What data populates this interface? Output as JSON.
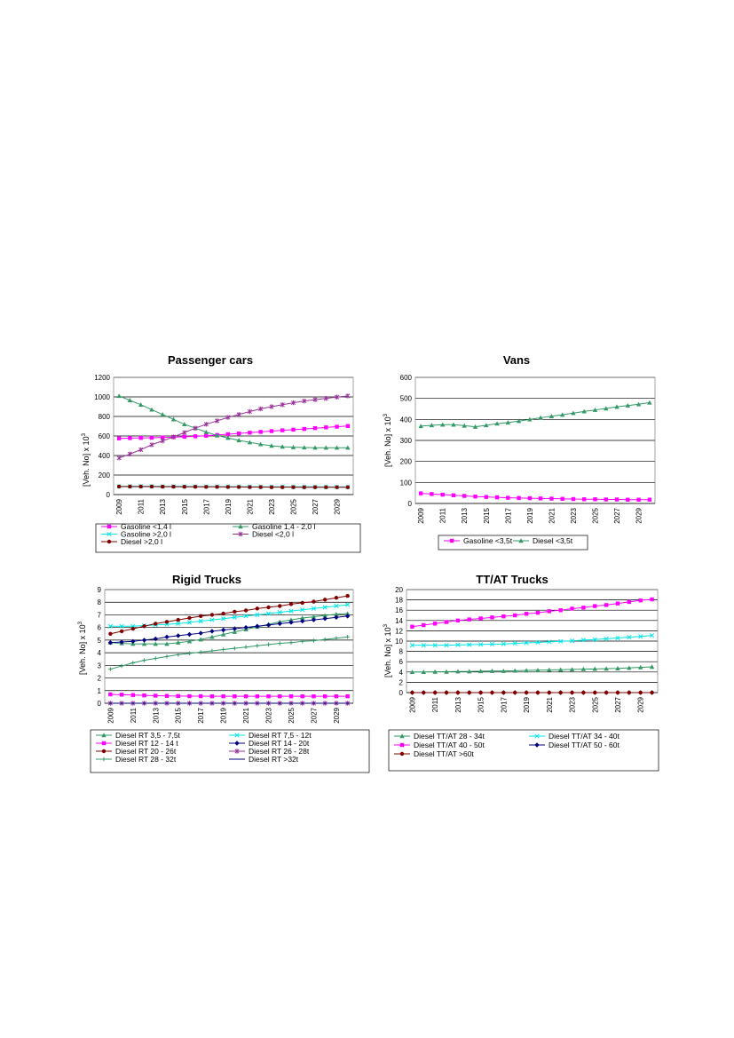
{
  "chart_data": [
    {
      "type": "line",
      "title": "Passenger cars",
      "ylabel": "[Veh. No] x 10",
      "ylabel_exp": "3",
      "ylim": [
        0,
        1200
      ],
      "yticks": [
        "0",
        "200",
        "400",
        "600",
        "800",
        "1000",
        "1200"
      ],
      "ytick_values": [
        0,
        200,
        400,
        600,
        800,
        1000,
        1200
      ],
      "x": [
        2009,
        2010,
        2011,
        2012,
        2013,
        2014,
        2015,
        2016,
        2017,
        2018,
        2019,
        2020,
        2021,
        2022,
        2023,
        2024,
        2025,
        2026,
        2027,
        2028,
        2029,
        2030
      ],
      "xticks": [
        "2009",
        "2011",
        "2013",
        "2015",
        "2017",
        "2019",
        "2021",
        "2023",
        "2025",
        "2027",
        "2029"
      ],
      "legend_position": "bottom",
      "series": [
        {
          "name": "Gasoline <1,4 l",
          "color": "#ff00ff",
          "marker": "square",
          "values": [
            575,
            578,
            580,
            582,
            585,
            588,
            592,
            597,
            602,
            610,
            618,
            626,
            634,
            642,
            650,
            658,
            665,
            672,
            680,
            688,
            695,
            702
          ]
        },
        {
          "name": "Gasoline 1,4 - 2,0 l",
          "color": "#339966",
          "marker": "triangle",
          "values": [
            1010,
            965,
            920,
            870,
            820,
            770,
            720,
            680,
            640,
            605,
            580,
            555,
            535,
            515,
            500,
            490,
            485,
            482,
            480,
            480,
            480,
            480
          ]
        },
        {
          "name": "Gasoline >2,0 l",
          "color": "#00e5e5",
          "marker": "x",
          "values": [
            85,
            85,
            85,
            85,
            84,
            84,
            84,
            83,
            83,
            82,
            82,
            81,
            81,
            80,
            80,
            80,
            79,
            79,
            79,
            78,
            78,
            78
          ]
        },
        {
          "name": "Diesel <2,0 l",
          "color": "#993399",
          "marker": "star",
          "values": [
            375,
            415,
            460,
            510,
            550,
            590,
            635,
            680,
            720,
            755,
            790,
            820,
            850,
            878,
            900,
            920,
            940,
            958,
            972,
            985,
            998,
            1010
          ]
        },
        {
          "name": "Diesel >2,0 l",
          "color": "#800000",
          "marker": "circle",
          "values": [
            82,
            82,
            82,
            82,
            81,
            81,
            80,
            80,
            79,
            79,
            78,
            78,
            77,
            77,
            76,
            76,
            76,
            75,
            75,
            75,
            75,
            75
          ]
        }
      ]
    },
    {
      "type": "line",
      "title": "Vans",
      "ylabel": "[Veh. No] x 10",
      "ylabel_exp": "3",
      "ylim": [
        0,
        600
      ],
      "yticks": [
        "0",
        "100",
        "200",
        "300",
        "400",
        "500",
        "600"
      ],
      "ytick_values": [
        0,
        100,
        200,
        300,
        400,
        500,
        600
      ],
      "x": [
        2009,
        2010,
        2011,
        2012,
        2013,
        2014,
        2015,
        2016,
        2017,
        2018,
        2019,
        2020,
        2021,
        2022,
        2023,
        2024,
        2025,
        2026,
        2027,
        2028,
        2029,
        2030
      ],
      "xticks": [
        "2009",
        "2011",
        "2013",
        "2015",
        "2017",
        "2019",
        "2021",
        "2023",
        "2025",
        "2027",
        "2029"
      ],
      "legend_position": "bottom",
      "series": [
        {
          "name": "Gasoline <3,5t",
          "color": "#ff00ff",
          "marker": "square",
          "values": [
            48,
            45,
            42,
            39,
            36,
            33,
            31,
            29,
            27,
            26,
            25,
            24,
            23,
            22,
            21,
            20,
            20,
            19,
            19,
            18,
            18,
            18
          ]
        },
        {
          "name": "Diesel <3,5t",
          "color": "#339966",
          "marker": "triangle",
          "values": [
            368,
            372,
            375,
            375,
            370,
            365,
            372,
            380,
            385,
            392,
            400,
            408,
            415,
            422,
            430,
            438,
            445,
            452,
            460,
            466,
            472,
            480
          ]
        }
      ]
    },
    {
      "type": "line",
      "title": "Rigid Trucks",
      "ylabel": "[Veh. No] x 10",
      "ylabel_exp": "3",
      "ylim": [
        0,
        9
      ],
      "yticks": [
        "0",
        "1",
        "2",
        "3",
        "4",
        "5",
        "6",
        "7",
        "8",
        "9"
      ],
      "ytick_values": [
        0,
        1,
        2,
        3,
        4,
        5,
        6,
        7,
        8,
        9
      ],
      "x": [
        2009,
        2010,
        2011,
        2012,
        2013,
        2014,
        2015,
        2016,
        2017,
        2018,
        2019,
        2020,
        2021,
        2022,
        2023,
        2024,
        2025,
        2026,
        2027,
        2028,
        2029,
        2030
      ],
      "xticks": [
        "2009",
        "2011",
        "2013",
        "2015",
        "2017",
        "2019",
        "2021",
        "2023",
        "2025",
        "2027",
        "2029"
      ],
      "legend_position": "bottom",
      "series": [
        {
          "name": "Diesel RT 3,5 - 7,5t",
          "color": "#339966",
          "marker": "triangle",
          "values": [
            4.8,
            4.75,
            4.7,
            4.7,
            4.7,
            4.7,
            4.8,
            4.9,
            5.05,
            5.25,
            5.45,
            5.65,
            5.85,
            6.05,
            6.25,
            6.45,
            6.6,
            6.75,
            6.85,
            6.95,
            7.05,
            7.1
          ]
        },
        {
          "name": "Diesel RT 7,5 - 12t",
          "color": "#00e5e5",
          "marker": "x",
          "values": [
            6.1,
            6.1,
            6.1,
            6.15,
            6.2,
            6.25,
            6.3,
            6.4,
            6.5,
            6.6,
            6.7,
            6.8,
            6.9,
            7.0,
            7.1,
            7.2,
            7.3,
            7.4,
            7.5,
            7.6,
            7.7,
            7.8
          ]
        },
        {
          "name": "Diesel RT 12 - 14 t",
          "color": "#ff00ff",
          "marker": "square",
          "values": [
            0.7,
            0.68,
            0.65,
            0.62,
            0.6,
            0.58,
            0.57,
            0.56,
            0.56,
            0.55,
            0.55,
            0.55,
            0.55,
            0.55,
            0.55,
            0.55,
            0.55,
            0.55,
            0.55,
            0.55,
            0.55,
            0.55
          ]
        },
        {
          "name": "Diesel RT 14 - 20t",
          "color": "#000080",
          "marker": "diamond",
          "values": [
            4.8,
            4.85,
            4.9,
            5.0,
            5.1,
            5.25,
            5.35,
            5.45,
            5.55,
            5.7,
            5.8,
            5.9,
            6.0,
            6.1,
            6.2,
            6.3,
            6.4,
            6.5,
            6.6,
            6.7,
            6.8,
            6.9
          ]
        },
        {
          "name": "Diesel RT 20 - 26t",
          "color": "#800000",
          "marker": "circle",
          "values": [
            5.5,
            5.7,
            5.9,
            6.1,
            6.3,
            6.45,
            6.6,
            6.75,
            6.9,
            7.0,
            7.1,
            7.25,
            7.35,
            7.5,
            7.6,
            7.7,
            7.85,
            7.95,
            8.05,
            8.2,
            8.35,
            8.5
          ]
        },
        {
          "name": "Diesel RT 26 - 28t",
          "color": "#993399",
          "marker": "star",
          "values": [
            0,
            0,
            0,
            0,
            0,
            0,
            0,
            0,
            0,
            0,
            0,
            0,
            0,
            0,
            0,
            0,
            0,
            0,
            0,
            0,
            0,
            0
          ]
        },
        {
          "name": "Diesel RT 28 - 32t",
          "color": "#339966",
          "marker": "plus",
          "values": [
            2.7,
            2.95,
            3.2,
            3.4,
            3.55,
            3.7,
            3.85,
            3.95,
            4.05,
            4.15,
            4.25,
            4.35,
            4.45,
            4.55,
            4.65,
            4.75,
            4.8,
            4.9,
            4.95,
            5.05,
            5.15,
            5.25
          ]
        },
        {
          "name": "Diesel RT >32t",
          "color": "#000080",
          "marker": "dash",
          "values": [
            0,
            0,
            0,
            0,
            0,
            0,
            0,
            0,
            0,
            0,
            0,
            0,
            0,
            0,
            0,
            0,
            0,
            0,
            0,
            0,
            0,
            0
          ]
        }
      ]
    },
    {
      "type": "line",
      "title": "TT/AT Trucks",
      "ylabel": "[Veh. No] x 10",
      "ylabel_exp": "3",
      "ylim": [
        0,
        20
      ],
      "yticks": [
        "0",
        "2",
        "4",
        "6",
        "8",
        "10",
        "12",
        "14",
        "16",
        "18",
        "20"
      ],
      "ytick_values": [
        0,
        2,
        4,
        6,
        8,
        10,
        12,
        14,
        16,
        18,
        20
      ],
      "x": [
        2009,
        2010,
        2011,
        2012,
        2013,
        2014,
        2015,
        2016,
        2017,
        2018,
        2019,
        2020,
        2021,
        2022,
        2023,
        2024,
        2025,
        2026,
        2027,
        2028,
        2029,
        2030
      ],
      "xticks": [
        "2009",
        "2011",
        "2013",
        "2015",
        "2017",
        "2019",
        "2021",
        "2023",
        "2025",
        "2027",
        "2029"
      ],
      "legend_position": "bottom",
      "series": [
        {
          "name": "Diesel TT/AT 28 - 34t",
          "color": "#339966",
          "marker": "triangle",
          "values": [
            4.0,
            4.0,
            4.05,
            4.05,
            4.1,
            4.1,
            4.15,
            4.2,
            4.2,
            4.25,
            4.3,
            4.35,
            4.4,
            4.45,
            4.5,
            4.55,
            4.6,
            4.65,
            4.7,
            4.8,
            4.9,
            5.0
          ]
        },
        {
          "name": "Diesel TT/AT 34 - 40t",
          "color": "#00e5e5",
          "marker": "x",
          "values": [
            9.2,
            9.2,
            9.2,
            9.2,
            9.25,
            9.3,
            9.35,
            9.4,
            9.45,
            9.55,
            9.65,
            9.75,
            9.85,
            9.95,
            10.05,
            10.2,
            10.3,
            10.45,
            10.6,
            10.75,
            10.9,
            11.1
          ]
        },
        {
          "name": "Diesel TT/AT 40 - 50t",
          "color": "#ff00ff",
          "marker": "square",
          "values": [
            12.8,
            13.1,
            13.4,
            13.7,
            14.0,
            14.2,
            14.4,
            14.6,
            14.8,
            15.0,
            15.3,
            15.5,
            15.8,
            16.0,
            16.3,
            16.5,
            16.8,
            17.0,
            17.3,
            17.6,
            17.9,
            18.1
          ]
        },
        {
          "name": "Diesel TT/AT 50 - 60t",
          "color": "#000080",
          "marker": "diamond",
          "values": [
            0,
            0,
            0,
            0,
            0,
            0,
            0,
            0,
            0,
            0,
            0,
            0,
            0,
            0,
            0,
            0,
            0,
            0,
            0,
            0,
            0,
            0
          ]
        },
        {
          "name": "Diesel TT/AT >60t",
          "color": "#800000",
          "marker": "circle",
          "values": [
            0,
            0,
            0,
            0,
            0,
            0,
            0,
            0,
            0,
            0,
            0,
            0,
            0,
            0,
            0,
            0,
            0,
            0,
            0,
            0,
            0,
            0
          ]
        }
      ]
    }
  ]
}
